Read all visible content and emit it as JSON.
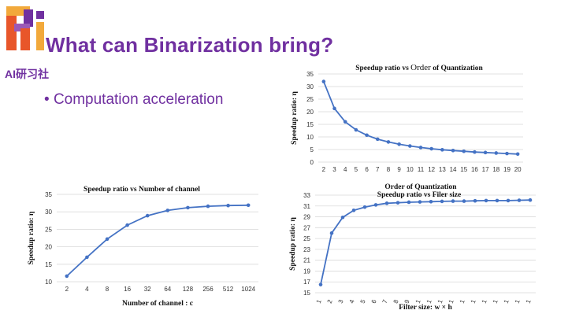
{
  "slide": {
    "title": "What can Binarization bring?",
    "brand": "AI研习社",
    "bullet_marker": "•",
    "bullet": "Computation acceleration",
    "logo_text": "Ri",
    "accent_color": "#7030A0",
    "series_color": "#4472C4"
  },
  "chart_data": [
    {
      "id": "order",
      "type": "line",
      "title_parts": [
        "Speedup ratio vs ",
        "Order",
        " of Quantization"
      ],
      "xlabel": "Order of Quantization",
      "ylabel": "Speedup ratio: η",
      "categories": [
        "2",
        "3",
        "4",
        "5",
        "6",
        "7",
        "8",
        "9",
        "10",
        "11",
        "12",
        "13",
        "14",
        "15",
        "16",
        "17",
        "18",
        "19",
        "20"
      ],
      "values": [
        32,
        21.3,
        16,
        12.8,
        10.7,
        9.1,
        8,
        7.1,
        6.4,
        5.8,
        5.3,
        4.9,
        4.6,
        4.3,
        4,
        3.8,
        3.6,
        3.4,
        3.2
      ],
      "ylim": [
        0,
        35
      ],
      "yticks": [
        0,
        5,
        10,
        15,
        20,
        25,
        30,
        35
      ],
      "grid": true
    },
    {
      "id": "channel",
      "type": "line",
      "title": "Speedup ratio vs Number of channel",
      "xlabel": "Number of channel : c",
      "ylabel": "Speedup ratio: η",
      "categories": [
        "2",
        "4",
        "8",
        "16",
        "32",
        "64",
        "128",
        "256",
        "512",
        "1024"
      ],
      "values": [
        11.6,
        17,
        22.2,
        26.2,
        28.9,
        30.4,
        31.2,
        31.6,
        31.8,
        31.9
      ],
      "ylim": [
        10,
        35
      ],
      "yticks": [
        10,
        15,
        20,
        25,
        30,
        35
      ],
      "grid": true
    },
    {
      "id": "filter",
      "type": "line",
      "title": "Speedup ratio vs Filer size",
      "xlabel": "Filter size: w × h",
      "ylabel": "Speedup ratio: η",
      "categories": [
        "1",
        "2",
        "3",
        "4",
        "5",
        "6",
        "7",
        "8",
        "9",
        "1",
        "1",
        "1",
        "1",
        "1",
        "1",
        "1",
        "1",
        "1",
        "1",
        "1"
      ],
      "values": [
        16.5,
        26,
        28.9,
        30.2,
        30.8,
        31.2,
        31.5,
        31.6,
        31.7,
        31.75,
        31.8,
        31.85,
        31.9,
        31.9,
        31.95,
        32,
        32,
        32,
        32.05,
        32.1
      ],
      "ylim": [
        15,
        33
      ],
      "yticks": [
        15,
        17,
        19,
        21,
        23,
        25,
        27,
        29,
        31,
        33
      ],
      "grid": true
    }
  ]
}
